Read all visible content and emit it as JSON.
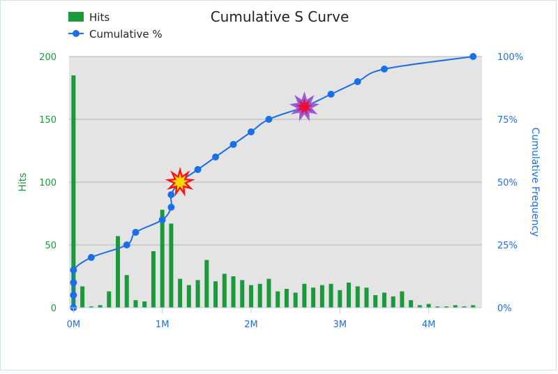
{
  "chart_data": {
    "type": "bar+line",
    "title": "Cumulative S Curve",
    "legend": [
      {
        "label": "Hits",
        "color": "#1a9a3a",
        "marker": "square"
      },
      {
        "label": "Cumulative %",
        "color": "#1a6ee8",
        "marker": "line-dot"
      }
    ],
    "legend_position": "top-left",
    "x_axis": {
      "ticks": [
        0,
        1000000,
        2000000,
        3000000,
        4000000
      ],
      "tick_labels": [
        "0M",
        "1M",
        "2M",
        "3M",
        "4M"
      ],
      "range": [
        -50000,
        4600000
      ]
    },
    "y_left": {
      "label": "Hits",
      "ticks": [
        0,
        50,
        100,
        150,
        200
      ],
      "range": [
        0,
        200
      ],
      "color": "#1a9a3a"
    },
    "y_right": {
      "label": "Cumulative Frequency",
      "ticks": [
        0,
        25,
        50,
        75,
        100
      ],
      "tick_labels": [
        "0%",
        "25%",
        "50%",
        "75%",
        "100%"
      ],
      "range": [
        0,
        100
      ],
      "color": "#1a6ee8"
    },
    "grid": true,
    "bars": {
      "name": "Hits",
      "color": "#1a9a3a",
      "x": [
        0,
        100000,
        200000,
        300000,
        400000,
        500000,
        600000,
        700000,
        800000,
        900000,
        1000000,
        1100000,
        1200000,
        1300000,
        1400000,
        1500000,
        1600000,
        1700000,
        1800000,
        1900000,
        2000000,
        2100000,
        2200000,
        2300000,
        2400000,
        2500000,
        2600000,
        2700000,
        2800000,
        2900000,
        3000000,
        3100000,
        3200000,
        3300000,
        3400000,
        3500000,
        3600000,
        3700000,
        3800000,
        3900000,
        4000000,
        4100000,
        4200000,
        4300000,
        4400000,
        4500000
      ],
      "values": [
        185,
        17,
        1,
        2,
        13,
        57,
        26,
        6,
        5,
        45,
        78,
        67,
        23,
        18,
        22,
        38,
        21,
        27,
        25,
        22,
        18,
        19,
        23,
        13,
        15,
        12,
        19,
        16,
        18,
        19,
        14,
        20,
        17,
        16,
        10,
        12,
        9,
        13,
        6,
        2,
        3,
        1,
        1,
        2,
        1,
        2
      ]
    },
    "line": {
      "name": "Cumulative %",
      "color": "#1a6ee8",
      "x": [
        0,
        0,
        0,
        0,
        200000,
        600000,
        700000,
        1000000,
        1100000,
        1100000,
        1200000,
        1400000,
        1600000,
        1800000,
        2000000,
        2200000,
        2600000,
        2900000,
        3200000,
        3500000,
        4500000
      ],
      "y": [
        0,
        5,
        10,
        15,
        20,
        25,
        30,
        35,
        40,
        45,
        50,
        55,
        60,
        65,
        70,
        75,
        80,
        85,
        90,
        95,
        100
      ]
    },
    "markers": [
      {
        "type": "starburst",
        "x": 1200000,
        "y_percent": 50,
        "style": "red-yellow"
      },
      {
        "type": "starburst",
        "x": 2600000,
        "y_percent": 80,
        "style": "purple-red"
      }
    ]
  }
}
